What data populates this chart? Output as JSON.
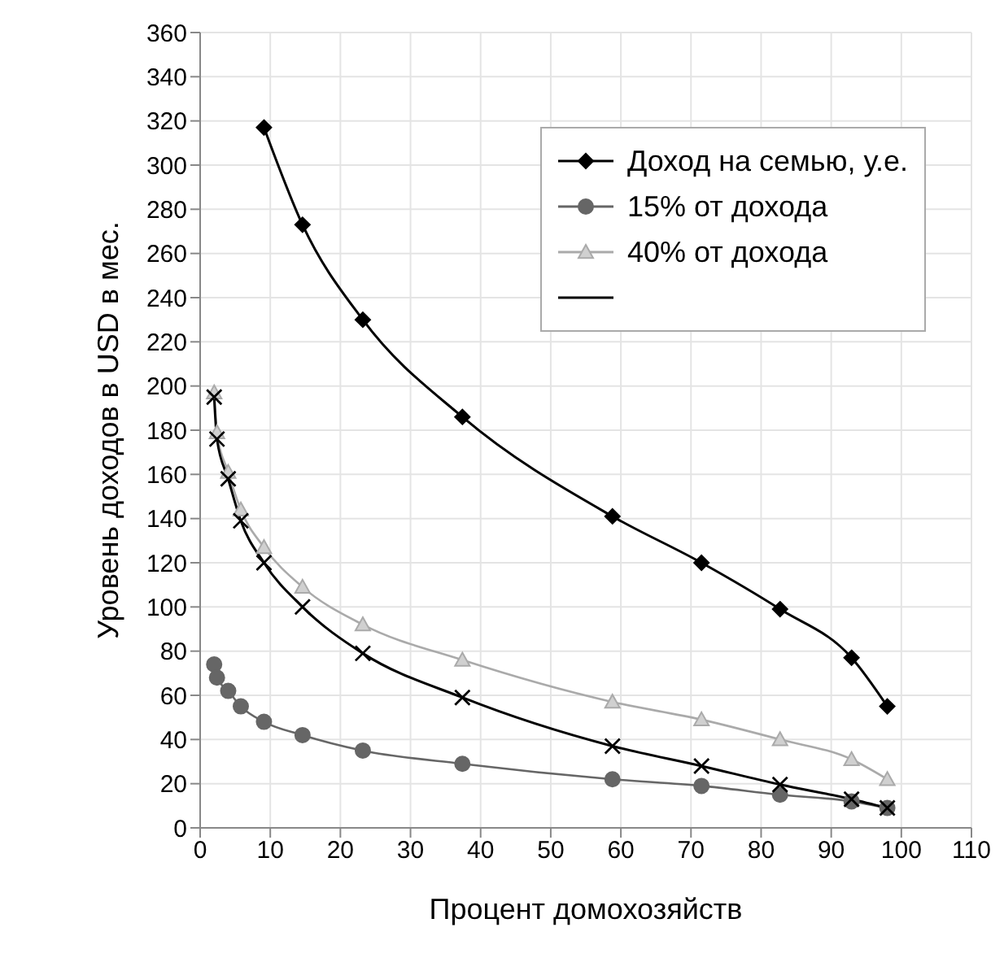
{
  "chart_data": {
    "type": "line",
    "xlabel": "Процент домохозяйств",
    "ylabel": "Уровень доходов в USD в мес.",
    "xlim": [
      0,
      110
    ],
    "xticks": [
      0,
      10,
      20,
      30,
      40,
      50,
      60,
      70,
      80,
      90,
      100,
      110
    ],
    "ylim": [
      0,
      360
    ],
    "yticks": [
      0,
      20,
      40,
      60,
      80,
      100,
      120,
      140,
      160,
      180,
      200,
      220,
      240,
      260,
      280,
      300,
      320,
      340,
      360
    ],
    "grid": true,
    "legend": "top right",
    "line_style": "solid",
    "series": [
      {
        "name": "Доход на семью, у.е.",
        "color": "#000000",
        "marker": "diamond",
        "x": [
          9.1,
          14.6,
          23.2,
          37.4,
          58.8,
          71.5,
          82.7,
          92.9,
          98
        ],
        "values": [
          317,
          273,
          230,
          186,
          141,
          120,
          99,
          77,
          55
        ]
      },
      {
        "name": "15% от дохода",
        "color": "#666666",
        "marker": "circle",
        "x": [
          2,
          2.4,
          4,
          5.8,
          9.1,
          14.6,
          23.2,
          37.4,
          58.8,
          71.5,
          82.7,
          92.9,
          98
        ],
        "values": [
          74,
          68,
          62,
          55,
          48,
          42,
          35,
          29,
          22,
          19,
          15,
          12,
          9
        ]
      },
      {
        "name": "40% от дохода",
        "color": "#aaaaaa",
        "marker": "triangle",
        "x": [
          2,
          2.4,
          4,
          5.8,
          9.1,
          14.6,
          23.2,
          37.4,
          58.8,
          71.5,
          82.7,
          92.9,
          98
        ],
        "values": [
          197,
          179,
          161,
          144,
          127,
          109,
          92,
          76,
          57,
          49,
          40,
          31,
          22
        ]
      },
      {
        "color": "#000000",
        "marker": "cross",
        "x": [
          2,
          2.4,
          4,
          5.8,
          9.1,
          14.6,
          23.2,
          37.4,
          58.8,
          71.5,
          82.7,
          92.9,
          98
        ],
        "values": [
          195,
          176,
          158,
          139,
          120,
          100,
          79,
          59,
          37,
          28,
          19.6,
          13,
          9
        ]
      }
    ]
  }
}
